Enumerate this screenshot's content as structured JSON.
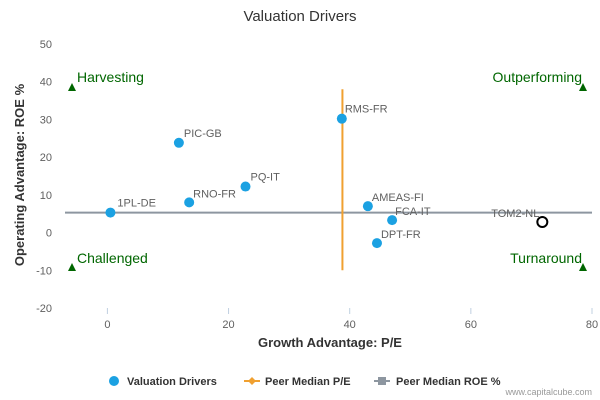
{
  "chart_data": {
    "type": "scatter",
    "title": "Valuation Drivers",
    "xlabel": "Growth Advantage: P/E",
    "ylabel": "Operating Advantage: ROE %",
    "xlim": [
      -7,
      80
    ],
    "ylim": [
      -20,
      50
    ],
    "xticks": [
      "0",
      "20",
      "40",
      "60",
      "80"
    ],
    "yticks": [
      "-20",
      "-10",
      "0",
      "10",
      "20",
      "30",
      "40",
      "50"
    ],
    "points": [
      {
        "label": "1PL-DE",
        "x": 0.5,
        "y": 5.3
      },
      {
        "label": "RNO-FR",
        "x": 13.5,
        "y": 8
      },
      {
        "label": "PIC-GB",
        "x": 11.8,
        "y": 23.8
      },
      {
        "label": "PQ-IT",
        "x": 22.8,
        "y": 12.2
      },
      {
        "label": "RMS-FR",
        "x": 38.7,
        "y": 30.2
      },
      {
        "label": "AMEAS-FI",
        "x": 43,
        "y": 7
      },
      {
        "label": "FCA-IT",
        "x": 47,
        "y": 3.3
      },
      {
        "label": "DPT-FR",
        "x": 44.5,
        "y": -2.8
      }
    ],
    "highlight": {
      "label": "TOM2-NL",
      "x": 71.8,
      "y": 2.8
    },
    "peer_median_pe": 38.8,
    "peer_median_pe_range": [
      -10,
      38
    ],
    "peer_median_roe": 5.3,
    "quadrants": {
      "top_left": "Harvesting",
      "top_right": "Outperforming",
      "bottom_left": "Challenged",
      "bottom_right": "Turnaround"
    },
    "legend": [
      "Valuation Drivers",
      "Peer Median P/E",
      "Peer Median ROE %"
    ],
    "colors": {
      "points": "#1ba1e2",
      "pe_line": "#f0a030",
      "roe_line": "#8d96a0",
      "quadrant": "#006600",
      "highlight_stroke": "#000000"
    }
  },
  "credit": "www.capitalcube.com"
}
